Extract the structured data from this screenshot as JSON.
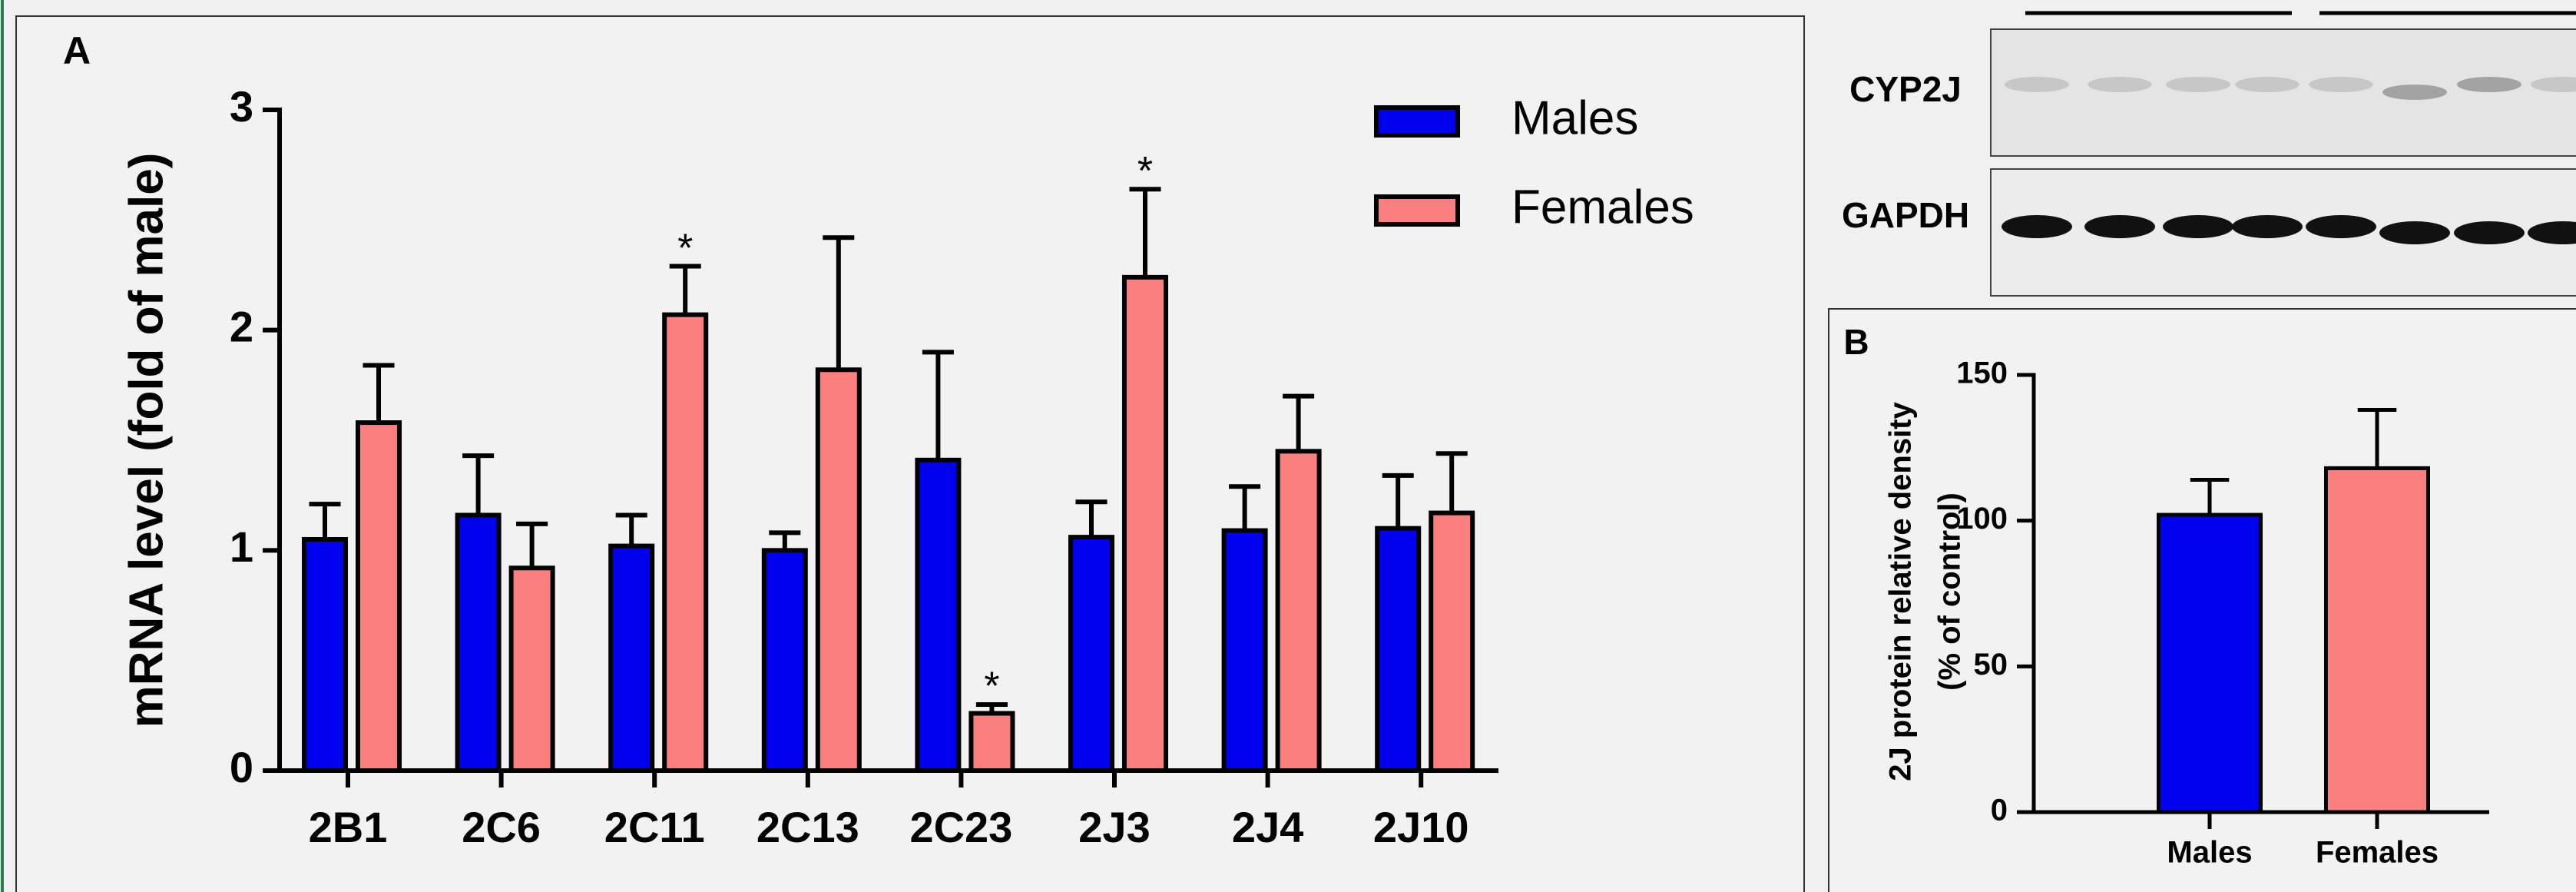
{
  "blot": {
    "rows": [
      "CYP2J",
      "GAPDH"
    ]
  },
  "chart_data": [
    {
      "type": "bar",
      "panel": "A",
      "ylabel": [
        "mRNA level (fold of male)"
      ],
      "categories": [
        "2B1",
        "2C6",
        "2C11",
        "2C13",
        "2C23",
        "2J3",
        "2J4",
        "2J10"
      ],
      "series": [
        {
          "name": "Males",
          "color": "#0000ee",
          "values": [
            1.05,
            1.16,
            1.02,
            1.0,
            1.41,
            1.06,
            1.09,
            1.1
          ],
          "errors": [
            0.16,
            0.27,
            0.14,
            0.08,
            0.49,
            0.16,
            0.2,
            0.24
          ],
          "annotations": [
            null,
            null,
            null,
            null,
            null,
            null,
            null,
            null
          ]
        },
        {
          "name": "Females",
          "color": "#fb7f7f",
          "values": [
            1.58,
            0.92,
            2.07,
            1.82,
            0.26,
            2.24,
            1.45,
            1.17
          ],
          "errors": [
            0.26,
            0.2,
            0.22,
            0.6,
            0.04,
            0.4,
            0.25,
            0.27
          ],
          "annotations": [
            null,
            null,
            "*",
            null,
            "*",
            "*",
            null,
            null
          ]
        }
      ],
      "ylim": [
        0,
        3
      ],
      "yticks": [
        0,
        1,
        2,
        3
      ],
      "legend": "top-right"
    },
    {
      "type": "bar",
      "panel": "B",
      "ylabel": [
        "2J protein relative density",
        "(% of control)"
      ],
      "categories": [
        "Males",
        "Females"
      ],
      "values": [
        102,
        118
      ],
      "errors": [
        12,
        20
      ],
      "colors": [
        "#0000ee",
        "#fb7f7f"
      ],
      "ylim": [
        0,
        150
      ],
      "yticks": [
        0,
        50,
        100,
        150
      ]
    }
  ]
}
